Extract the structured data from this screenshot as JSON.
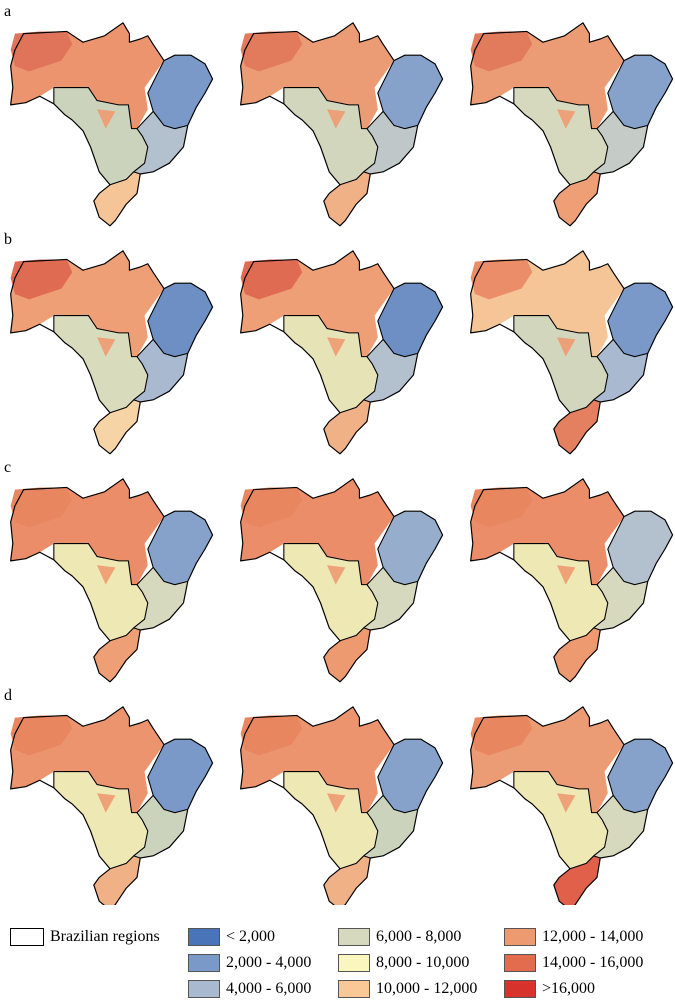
{
  "panels": [
    {
      "label": "a",
      "maps": [
        {
          "north": "#eb946e",
          "northwest": "#e0745a",
          "northeast": "#7a99c8",
          "central": "#ccd3bd",
          "southeast": "#b3c0cd",
          "south": "#f5c598"
        },
        {
          "north": "#ec9c74",
          "northwest": "#e27a5c",
          "northeast": "#86a2cb",
          "central": "#d2d6bd",
          "southeast": "#bfc7c9",
          "south": "#f0b186"
        },
        {
          "north": "#ec9c74",
          "northwest": "#e27a5c",
          "northeast": "#86a2cb",
          "central": "#d6d9bd",
          "southeast": "#c5cbc6",
          "south": "#ee9f76"
        }
      ]
    },
    {
      "label": "b",
      "maps": [
        {
          "north": "#ee9f76",
          "northwest": "#df6b52",
          "northeast": "#6e8fc4",
          "central": "#d9dcbc",
          "southeast": "#a9b9d0",
          "south": "#f6d4a6"
        },
        {
          "north": "#ee9f76",
          "northwest": "#df6b52",
          "northeast": "#6e8fc4",
          "central": "#e6e4b7",
          "southeast": "#b3c0cd",
          "south": "#f0b186"
        },
        {
          "north": "#f5c598",
          "northwest": "#eb8d68",
          "northeast": "#7a99c8",
          "central": "#d2d6bd",
          "southeast": "#a9b9d0",
          "south": "#e4805f"
        }
      ]
    },
    {
      "label": "c",
      "maps": [
        {
          "north": "#ea8d68",
          "northwest": "#e8875f",
          "northeast": "#86a2cb",
          "central": "#eee9b4",
          "southeast": "#d6d9bd",
          "south": "#ef9f76"
        },
        {
          "north": "#ea8d68",
          "northwest": "#e8875f",
          "northeast": "#96aecc",
          "central": "#eee9b4",
          "southeast": "#d6d9bd",
          "south": "#ee9a70"
        },
        {
          "north": "#ea8d68",
          "northwest": "#e8875f",
          "northeast": "#b3c0cd",
          "central": "#eee9b4",
          "southeast": "#d6d9bd",
          "south": "#ee9a70"
        }
      ]
    },
    {
      "label": "d",
      "maps": [
        {
          "north": "#eb946e",
          "northwest": "#e8875f",
          "northeast": "#7a99c8",
          "central": "#eee9b4",
          "southeast": "#ccd3bd",
          "south": "#f0b186"
        },
        {
          "north": "#eb946e",
          "northwest": "#e8875f",
          "northeast": "#86a2cb",
          "central": "#eee9b4",
          "southeast": "#ccd3bd",
          "south": "#f0b186"
        },
        {
          "north": "#ec9c74",
          "northwest": "#e8875f",
          "northeast": "#86a2cb",
          "central": "#eee9b4",
          "southeast": "#d6d9bd",
          "south": "#e0604a"
        }
      ]
    }
  ],
  "legend": {
    "regions_label": "Brazilian regions",
    "classes": [
      {
        "label": "< 2,000",
        "color": "#4a74b9"
      },
      {
        "label": "2,000 - 4,000",
        "color": "#7a99c8"
      },
      {
        "label": "4,000 - 6,000",
        "color": "#a9b9d0"
      },
      {
        "label": "6,000 - 8,000",
        "color": "#d6d9bd"
      },
      {
        "label": "8,000 - 10,000",
        "color": "#fbf5be"
      },
      {
        "label": "10,000 - 12,000",
        "color": "#f9c896"
      },
      {
        "label": "12,000 - 14,000",
        "color": "#ee9a70"
      },
      {
        "label": "14,000 - 16,000",
        "color": "#e36b4e"
      },
      {
        "label": ">16,000",
        "color": "#d7322c"
      }
    ]
  }
}
